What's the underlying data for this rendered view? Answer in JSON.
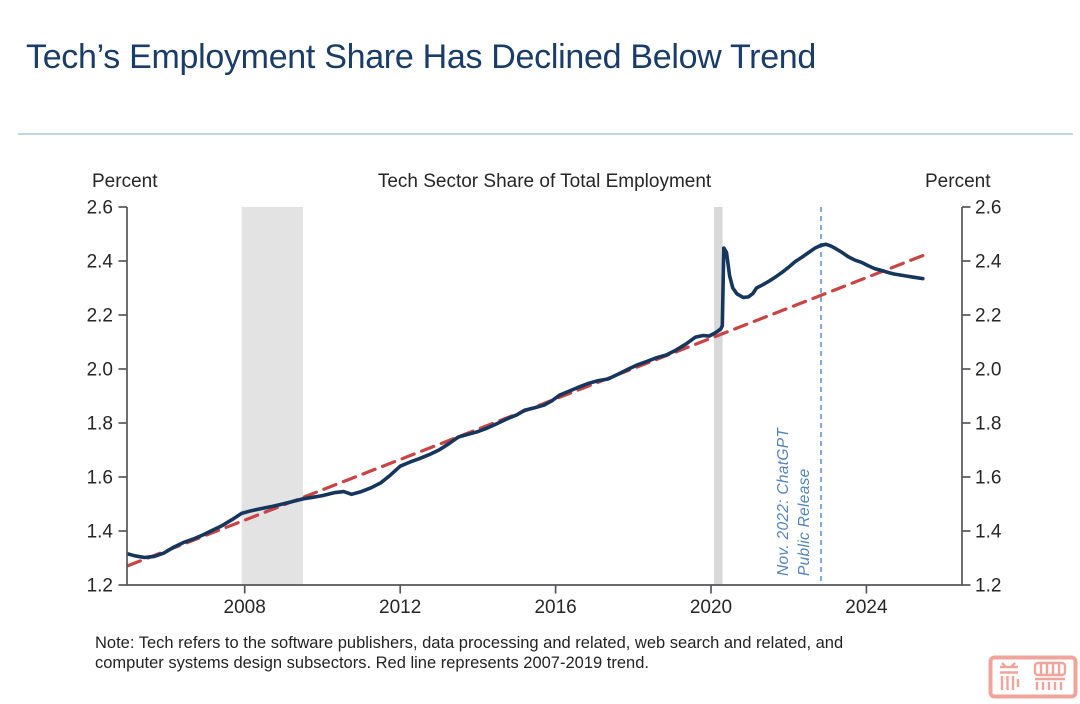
{
  "header": {
    "title": "Tech’s Employment Share Has Declined Below Trend"
  },
  "note": {
    "line1": "Note: Tech refers to the software publishers, data processing and related, web search and related, and",
    "line2": "computer systems design subsectors. Red line represents 2007-2019 trend."
  },
  "watermark": {
    "name": "red-seal-stamp"
  },
  "chart_data": {
    "type": "line",
    "title": "Tech Sector Share of Total Employment",
    "ylabel_left": "Percent",
    "ylabel_right": "Percent",
    "xlabel": "",
    "xlim": [
      2004.97,
      2026.46
    ],
    "ylim": [
      1.2,
      2.6
    ],
    "y_ticks": [
      1.2,
      1.4,
      1.6,
      1.8,
      2.0,
      2.2,
      2.4,
      2.6
    ],
    "x_ticks": [
      2008,
      2012,
      2016,
      2020,
      2024
    ],
    "grid": false,
    "legend": "none",
    "axis_color": "#55565a",
    "tick_label_color": "#262626",
    "shaded_regions": [
      {
        "name": "recession-band-2008",
        "from": 2007.92,
        "to": 2009.5,
        "color": "#e3e3e3"
      },
      {
        "name": "recession-band-2020",
        "from": 2020.08,
        "to": 2020.3,
        "color": "#d8d8d8"
      }
    ],
    "event_line": {
      "name": "chatgpt-release-line",
      "x": 2022.83,
      "color": "#6f9ccd",
      "dash": "5 4",
      "label_line1": "Nov. 2022: ChatGPT",
      "label_line2": "Public Release",
      "label_color": "#5583b8"
    },
    "series": [
      {
        "name": "tech-share",
        "label": "Tech sector share of total employment",
        "color": "#17365e",
        "width": 3.6,
        "z": 2,
        "points": [
          [
            2005.0,
            1.315
          ],
          [
            2005.17,
            1.308
          ],
          [
            2005.42,
            1.302
          ],
          [
            2005.67,
            1.306
          ],
          [
            2005.92,
            1.318
          ],
          [
            2006.17,
            1.34
          ],
          [
            2006.42,
            1.357
          ],
          [
            2006.67,
            1.37
          ],
          [
            2006.92,
            1.385
          ],
          [
            2007.17,
            1.403
          ],
          [
            2007.42,
            1.42
          ],
          [
            2007.67,
            1.442
          ],
          [
            2007.92,
            1.465
          ],
          [
            2008.17,
            1.475
          ],
          [
            2008.42,
            1.483
          ],
          [
            2008.67,
            1.49
          ],
          [
            2008.92,
            1.498
          ],
          [
            2009.17,
            1.507
          ],
          [
            2009.5,
            1.519
          ],
          [
            2009.75,
            1.525
          ],
          [
            2010.0,
            1.531
          ],
          [
            2010.3,
            1.542
          ],
          [
            2010.55,
            1.546
          ],
          [
            2010.75,
            1.536
          ],
          [
            2011.0,
            1.546
          ],
          [
            2011.25,
            1.56
          ],
          [
            2011.5,
            1.578
          ],
          [
            2011.75,
            1.607
          ],
          [
            2012.0,
            1.64
          ],
          [
            2012.25,
            1.655
          ],
          [
            2012.5,
            1.668
          ],
          [
            2012.75,
            1.683
          ],
          [
            2013.0,
            1.7
          ],
          [
            2013.25,
            1.723
          ],
          [
            2013.5,
            1.748
          ],
          [
            2013.75,
            1.758
          ],
          [
            2014.0,
            1.768
          ],
          [
            2014.25,
            1.782
          ],
          [
            2014.5,
            1.798
          ],
          [
            2014.75,
            1.815
          ],
          [
            2015.0,
            1.83
          ],
          [
            2015.2,
            1.847
          ],
          [
            2015.45,
            1.856
          ],
          [
            2015.7,
            1.866
          ],
          [
            2015.9,
            1.882
          ],
          [
            2016.1,
            1.903
          ],
          [
            2016.35,
            1.918
          ],
          [
            2016.6,
            1.933
          ],
          [
            2016.85,
            1.947
          ],
          [
            2017.1,
            1.957
          ],
          [
            2017.35,
            1.963
          ],
          [
            2017.6,
            1.98
          ],
          [
            2017.85,
            1.998
          ],
          [
            2018.1,
            2.015
          ],
          [
            2018.35,
            2.028
          ],
          [
            2018.6,
            2.042
          ],
          [
            2018.85,
            2.052
          ],
          [
            2019.1,
            2.07
          ],
          [
            2019.35,
            2.092
          ],
          [
            2019.6,
            2.118
          ],
          [
            2019.8,
            2.124
          ],
          [
            2019.95,
            2.122
          ],
          [
            2020.12,
            2.135
          ],
          [
            2020.25,
            2.148
          ],
          [
            2020.29,
            2.16
          ],
          [
            2020.33,
            2.448
          ],
          [
            2020.4,
            2.432
          ],
          [
            2020.48,
            2.345
          ],
          [
            2020.56,
            2.3
          ],
          [
            2020.67,
            2.278
          ],
          [
            2020.83,
            2.265
          ],
          [
            2020.96,
            2.267
          ],
          [
            2021.08,
            2.28
          ],
          [
            2021.17,
            2.3
          ],
          [
            2021.33,
            2.312
          ],
          [
            2021.5,
            2.326
          ],
          [
            2021.67,
            2.342
          ],
          [
            2021.83,
            2.358
          ],
          [
            2022.0,
            2.377
          ],
          [
            2022.17,
            2.398
          ],
          [
            2022.33,
            2.413
          ],
          [
            2022.5,
            2.43
          ],
          [
            2022.67,
            2.447
          ],
          [
            2022.83,
            2.458
          ],
          [
            2022.96,
            2.462
          ],
          [
            2023.08,
            2.456
          ],
          [
            2023.21,
            2.446
          ],
          [
            2023.37,
            2.432
          ],
          [
            2023.54,
            2.415
          ],
          [
            2023.71,
            2.403
          ],
          [
            2023.87,
            2.395
          ],
          [
            2024.04,
            2.383
          ],
          [
            2024.21,
            2.372
          ],
          [
            2024.37,
            2.366
          ],
          [
            2024.54,
            2.358
          ],
          [
            2024.71,
            2.352
          ],
          [
            2024.87,
            2.348
          ],
          [
            2025.04,
            2.344
          ],
          [
            2025.21,
            2.34
          ],
          [
            2025.45,
            2.335
          ]
        ]
      },
      {
        "name": "trend-line-2007-2019",
        "label": "2007-2019 trend",
        "color": "#c94444",
        "width": 3.2,
        "dash": "13 8",
        "z": 1,
        "points": [
          [
            2005.0,
            1.272
          ],
          [
            2025.45,
            2.42
          ]
        ]
      }
    ]
  }
}
